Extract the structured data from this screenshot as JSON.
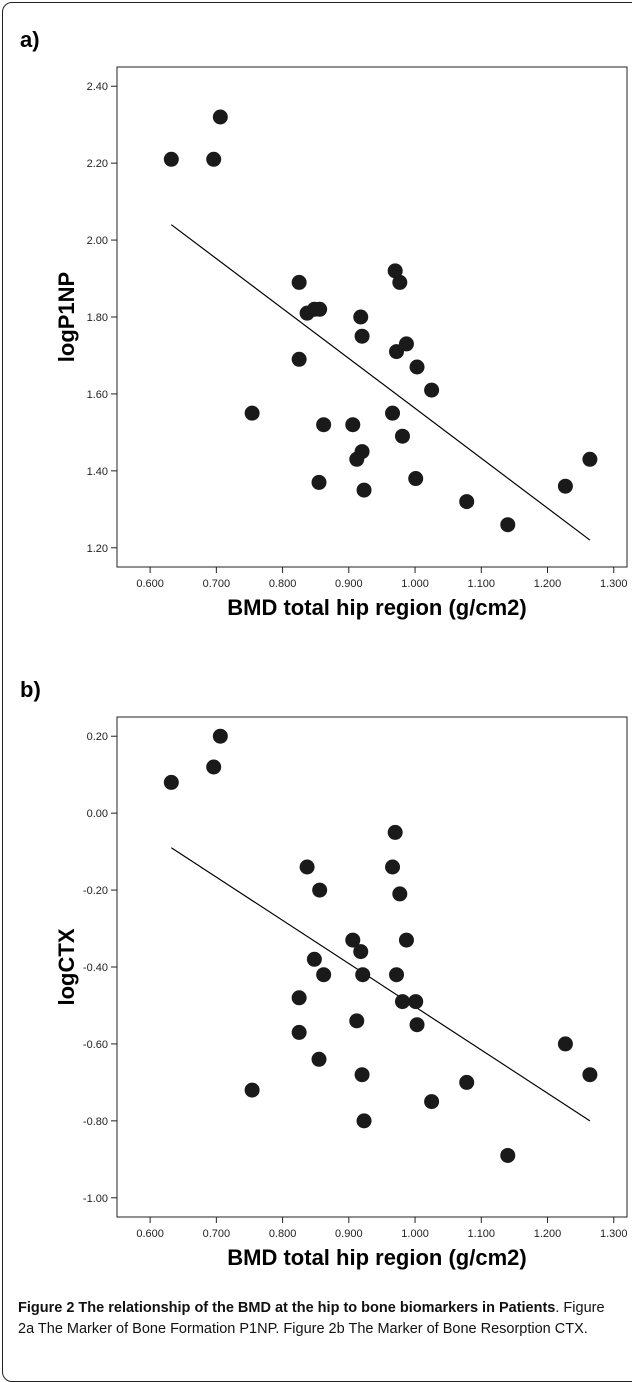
{
  "chart_data": [
    {
      "panel_label": "a)",
      "type": "scatter",
      "xlabel": "BMD total hip region (g/cm2)",
      "ylabel": "logP1NP",
      "xlim": [
        0.55,
        1.32
      ],
      "ylim": [
        1.15,
        2.45
      ],
      "x_ticks": [
        "0.600",
        "0.700",
        "0.800",
        "0.900",
        "1.000",
        "1.100",
        "1.200",
        "1.300"
      ],
      "y_ticks": [
        "1.20",
        "1.40",
        "1.60",
        "1.80",
        "2.00",
        "2.20",
        "2.40"
      ],
      "grid": false,
      "points": [
        [
          0.632,
          2.21
        ],
        [
          0.696,
          2.21
        ],
        [
          0.706,
          2.32
        ],
        [
          0.754,
          1.55
        ],
        [
          0.825,
          1.89
        ],
        [
          0.825,
          1.69
        ],
        [
          0.837,
          1.81
        ],
        [
          0.848,
          1.82
        ],
        [
          0.856,
          1.82
        ],
        [
          0.855,
          1.37
        ],
        [
          0.862,
          1.52
        ],
        [
          0.906,
          1.52
        ],
        [
          0.912,
          1.43
        ],
        [
          0.918,
          1.8
        ],
        [
          0.92,
          1.75
        ],
        [
          0.92,
          1.45
        ],
        [
          0.923,
          1.35
        ],
        [
          0.966,
          1.55
        ],
        [
          0.97,
          1.92
        ],
        [
          0.972,
          1.71
        ],
        [
          0.977,
          1.89
        ],
        [
          0.981,
          1.49
        ],
        [
          0.987,
          1.73
        ],
        [
          1.001,
          1.38
        ],
        [
          1.003,
          1.67
        ],
        [
          1.025,
          1.61
        ],
        [
          1.078,
          1.32
        ],
        [
          1.14,
          1.26
        ],
        [
          1.227,
          1.36
        ],
        [
          1.264,
          1.43
        ]
      ],
      "fit_line": [
        [
          0.632,
          2.04
        ],
        [
          1.264,
          1.22
        ]
      ]
    },
    {
      "panel_label": "b)",
      "type": "scatter",
      "xlabel": "BMD total hip region (g/cm2)",
      "ylabel": "logCTX",
      "xlim": [
        0.55,
        1.32
      ],
      "ylim": [
        -1.05,
        0.25
      ],
      "x_ticks": [
        "0.600",
        "0.700",
        "0.800",
        "0.900",
        "1.000",
        "1.100",
        "1.200",
        "1.300"
      ],
      "y_ticks": [
        "0.20",
        "0.00",
        "-0.20",
        "-0.40",
        "-0.60",
        "-0.80",
        "-1.00"
      ],
      "grid": false,
      "points": [
        [
          0.632,
          0.08
        ],
        [
          0.696,
          0.12
        ],
        [
          0.706,
          0.2
        ],
        [
          0.754,
          -0.72
        ],
        [
          0.825,
          -0.48
        ],
        [
          0.825,
          -0.57
        ],
        [
          0.837,
          -0.14
        ],
        [
          0.848,
          -0.38
        ],
        [
          0.856,
          -0.2
        ],
        [
          0.855,
          -0.64
        ],
        [
          0.862,
          -0.42
        ],
        [
          0.906,
          -0.33
        ],
        [
          0.912,
          -0.54
        ],
        [
          0.918,
          -0.36
        ],
        [
          0.92,
          -0.68
        ],
        [
          0.921,
          -0.42
        ],
        [
          0.923,
          -0.8
        ],
        [
          0.966,
          -0.14
        ],
        [
          0.97,
          -0.05
        ],
        [
          0.972,
          -0.42
        ],
        [
          0.977,
          -0.21
        ],
        [
          0.981,
          -0.49
        ],
        [
          0.987,
          -0.33
        ],
        [
          1.001,
          -0.49
        ],
        [
          1.003,
          -0.55
        ],
        [
          1.025,
          -0.75
        ],
        [
          1.078,
          -0.7
        ],
        [
          1.14,
          -0.89
        ],
        [
          1.227,
          -0.6
        ],
        [
          1.264,
          -0.68
        ]
      ],
      "fit_line": [
        [
          0.632,
          -0.09
        ],
        [
          1.264,
          -0.8
        ]
      ]
    }
  ],
  "caption": {
    "figure_label": "Figure 2 The relationship of the BMD at the hip to bone biomarkers in Patients",
    "rest": ". Figure 2a The Marker of Bone Formation P1NP. Figure 2b The Marker of Bone Resorption CTX."
  },
  "colors": {
    "marker": "#1a1a1a",
    "line": "#000000",
    "frame": "#222222"
  }
}
